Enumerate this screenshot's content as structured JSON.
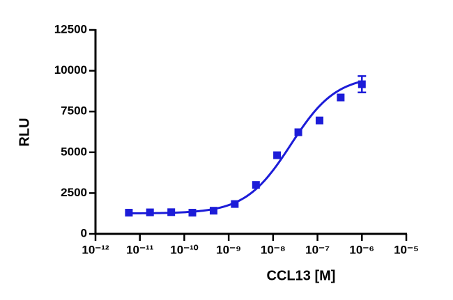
{
  "chart_data": {
    "type": "scatter",
    "x_label": "CCL13 [M]",
    "y_label": "RLU",
    "xscale": "log",
    "xlim": [
      1e-12,
      1e-05
    ],
    "xticks": [
      {
        "value": 1e-12,
        "label": "10⁻¹²"
      },
      {
        "value": 1e-11,
        "label": "10⁻¹¹"
      },
      {
        "value": 1e-10,
        "label": "10⁻¹⁰"
      },
      {
        "value": 1e-09,
        "label": "10⁻⁹"
      },
      {
        "value": 1e-08,
        "label": "10⁻⁸"
      },
      {
        "value": 1e-07,
        "label": "10⁻⁷"
      },
      {
        "value": 1e-06,
        "label": "10⁻⁶"
      },
      {
        "value": 1e-05,
        "label": "10⁻⁵"
      }
    ],
    "ylim": [
      0,
      12500
    ],
    "yticks": [
      0,
      2500,
      5000,
      7500,
      10000,
      12500
    ],
    "series": [
      {
        "color": "#1c1cd8",
        "x": [
          5.65e-12,
          1.69e-11,
          5.08e-11,
          1.52e-10,
          4.57e-10,
          1.37e-09,
          4.12e-09,
          1.23e-08,
          3.7e-08,
          1.11e-07,
          3.33e-07,
          1e-06
        ],
        "values": [
          1300,
          1320,
          1330,
          1300,
          1420,
          1830,
          3000,
          4820,
          6230,
          6950,
          8360,
          9170
        ],
        "errors": [
          null,
          null,
          null,
          null,
          null,
          null,
          null,
          null,
          null,
          null,
          null,
          500
        ]
      }
    ],
    "fit": {
      "bottom": 1250,
      "top": 9700,
      "log_ec50": -7.6,
      "hill": 0.85,
      "color": "#1c1cd8"
    }
  }
}
